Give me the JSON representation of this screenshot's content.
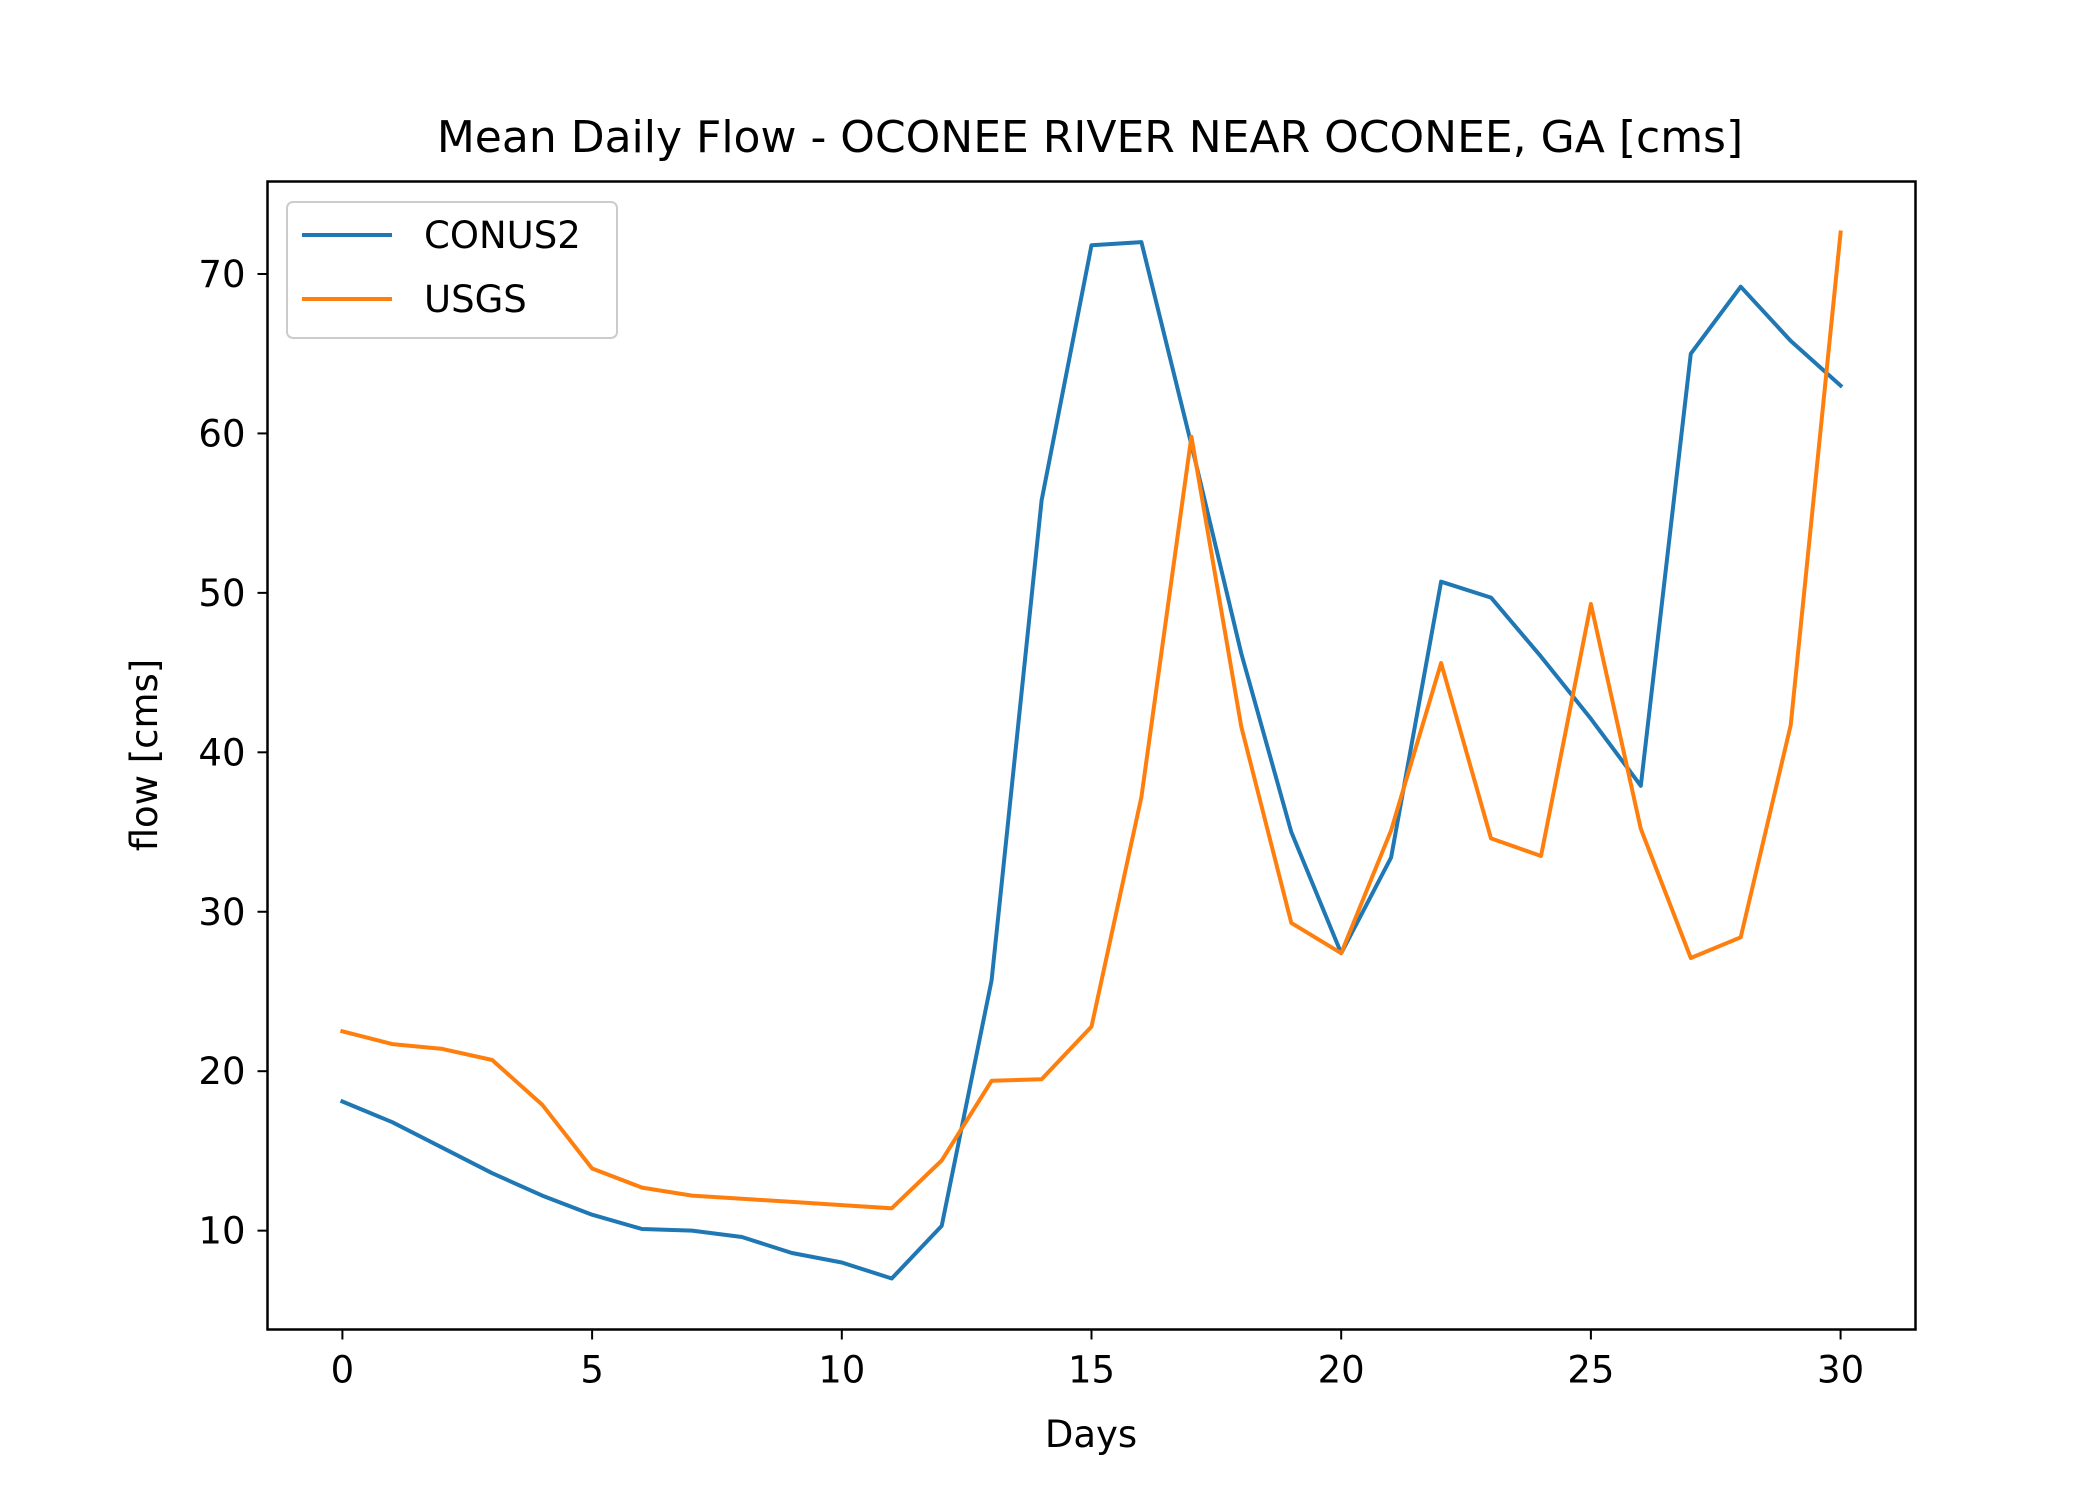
{
  "chart_data": {
    "type": "line",
    "title": "Mean Daily Flow - OCONEE RIVER NEAR OCONEE, GA [cms]",
    "xlabel": "Days",
    "ylabel": "flow [cms]",
    "xlim": [
      -1.5,
      31.5
    ],
    "ylim": [
      3.8,
      75.8
    ],
    "xticks": [
      0,
      5,
      10,
      15,
      20,
      25,
      30
    ],
    "yticks": [
      10,
      20,
      30,
      40,
      50,
      60,
      70
    ],
    "grid": false,
    "legend_position": "upper left",
    "x": [
      0,
      1,
      2,
      3,
      4,
      5,
      6,
      7,
      8,
      9,
      10,
      11,
      12,
      13,
      14,
      15,
      16,
      17,
      18,
      19,
      20,
      21,
      22,
      23,
      24,
      25,
      26,
      27,
      28,
      29,
      30
    ],
    "series": [
      {
        "name": "CONUS2",
        "color": "#1f77b4",
        "values": [
          18.1,
          16.8,
          15.2,
          13.6,
          12.2,
          11.0,
          10.1,
          10.0,
          9.6,
          8.6,
          8.0,
          7.0,
          10.3,
          25.7,
          55.8,
          71.8,
          72.0,
          59.3,
          46.2,
          35.0,
          27.4,
          33.4,
          50.7,
          49.7,
          46.0,
          42.1,
          37.9,
          65.0,
          69.2,
          65.8,
          63.0
        ]
      },
      {
        "name": "USGS",
        "color": "#ff7f0e",
        "values": [
          22.5,
          21.7,
          21.4,
          20.7,
          17.9,
          13.9,
          12.7,
          12.2,
          12.0,
          11.8,
          11.6,
          11.4,
          14.4,
          19.4,
          19.5,
          22.8,
          37.2,
          59.8,
          41.6,
          29.3,
          27.4,
          35.1,
          45.6,
          34.6,
          33.5,
          49.3,
          35.2,
          27.1,
          28.4,
          41.7,
          72.6
        ]
      }
    ]
  }
}
